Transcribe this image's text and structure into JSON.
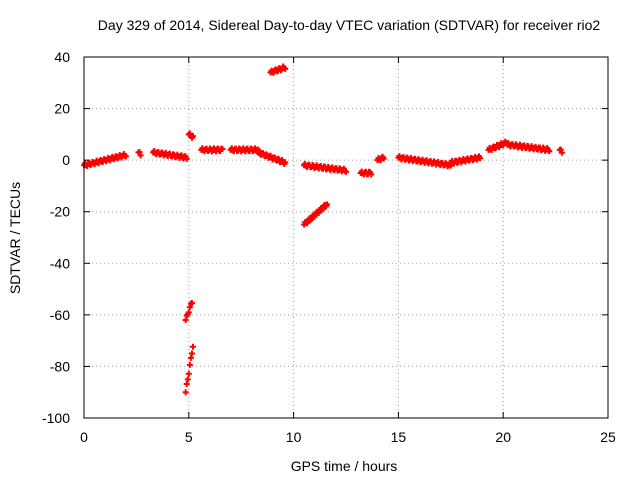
{
  "chart_data": {
    "type": "scatter",
    "title": "Day 329 of 2014, Sidereal Day-to-day VTEC variation (SDTVAR) for receiver rio2",
    "xlabel": "GPS time / hours",
    "ylabel": "SDTVAR / TECUs",
    "xlim": [
      0,
      25
    ],
    "ylim": [
      -100,
      40
    ],
    "xticks": [
      0,
      5,
      10,
      15,
      20,
      25
    ],
    "yticks": [
      -100,
      -80,
      -60,
      -40,
      -20,
      0,
      20,
      40
    ],
    "grid": true,
    "marker_color": "#ff0000",
    "marker": "plus",
    "series": [
      {
        "name": "SDTVAR",
        "segments": [
          {
            "x0": 0.0,
            "x1": 2.0,
            "y0": -2,
            "y1": 2
          },
          {
            "x0": 2.6,
            "x1": 2.7,
            "y0": 3,
            "y1": 2
          },
          {
            "x0": 3.3,
            "x1": 4.9,
            "y0": 3,
            "y1": 1
          },
          {
            "x0": 5.0,
            "x1": 5.2,
            "y0": 10,
            "y1": 9
          },
          {
            "x0": 5.6,
            "x1": 6.6,
            "y0": 4,
            "y1": 4
          },
          {
            "x0": 7.0,
            "x1": 8.3,
            "y0": 4,
            "y1": 4
          },
          {
            "x0": 8.3,
            "x1": 9.6,
            "y0": 3,
            "y1": -1
          },
          {
            "x0": 8.9,
            "x1": 9.6,
            "y0": 34,
            "y1": 36
          },
          {
            "x0": 10.5,
            "x1": 11.6,
            "y0": -25,
            "y1": -17
          },
          {
            "x0": 10.5,
            "x1": 12.5,
            "y0": -2,
            "y1": -4
          },
          {
            "x0": 13.2,
            "x1": 13.7,
            "y0": -5,
            "y1": -5
          },
          {
            "x0": 14.0,
            "x1": 14.3,
            "y0": 0,
            "y1": 1
          },
          {
            "x0": 15.0,
            "x1": 17.5,
            "y0": 1,
            "y1": -2
          },
          {
            "x0": 17.5,
            "x1": 18.9,
            "y0": -1,
            "y1": 1
          },
          {
            "x0": 19.3,
            "x1": 20.2,
            "y0": 4,
            "y1": 7
          },
          {
            "x0": 20.2,
            "x1": 22.2,
            "y0": 6,
            "y1": 4
          },
          {
            "x0": 22.7,
            "x1": 22.8,
            "y0": 4,
            "y1": 3
          },
          {
            "x0": 4.85,
            "x1": 5.15,
            "y0": -62,
            "y1": -55
          },
          {
            "x0": 4.85,
            "x1": 5.2,
            "y0": -90,
            "y1": -72
          }
        ]
      }
    ]
  }
}
